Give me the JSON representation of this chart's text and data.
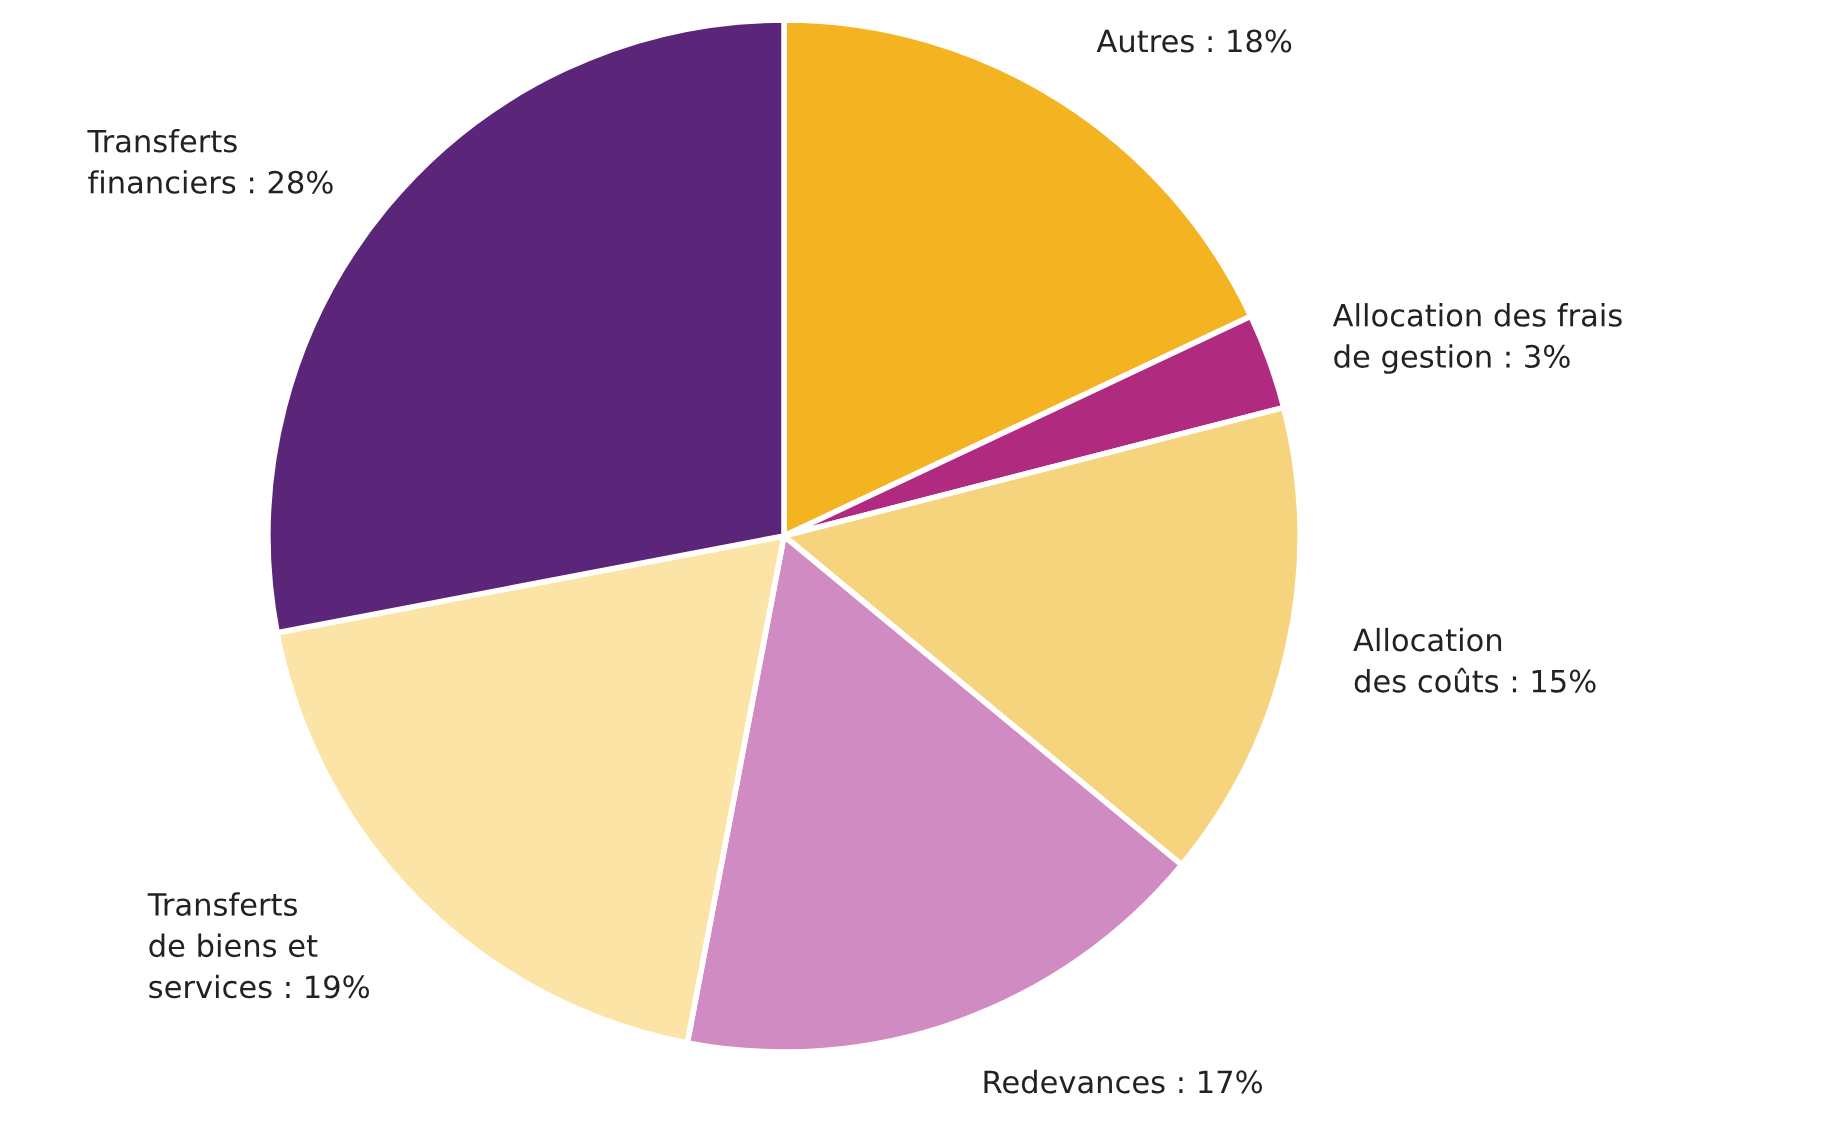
{
  "chart_data": {
    "type": "pie",
    "categories": [
      "Autres",
      "Allocation des frais\nde gestion",
      "Allocation\ndes coûts",
      "Redevances",
      "Transferts\nde biens et\nservices",
      "Transferts\nfinanciers"
    ],
    "values": [
      18,
      3,
      15,
      17,
      19,
      28
    ],
    "value_labels": [
      "18%",
      "3%",
      "15%",
      "17%",
      "19%",
      "28%"
    ],
    "colors": [
      "#f4b320",
      "#b02a80",
      "#f6d47e",
      "#d08cc2",
      "#fbe4a6",
      "#5b2579"
    ]
  }
}
